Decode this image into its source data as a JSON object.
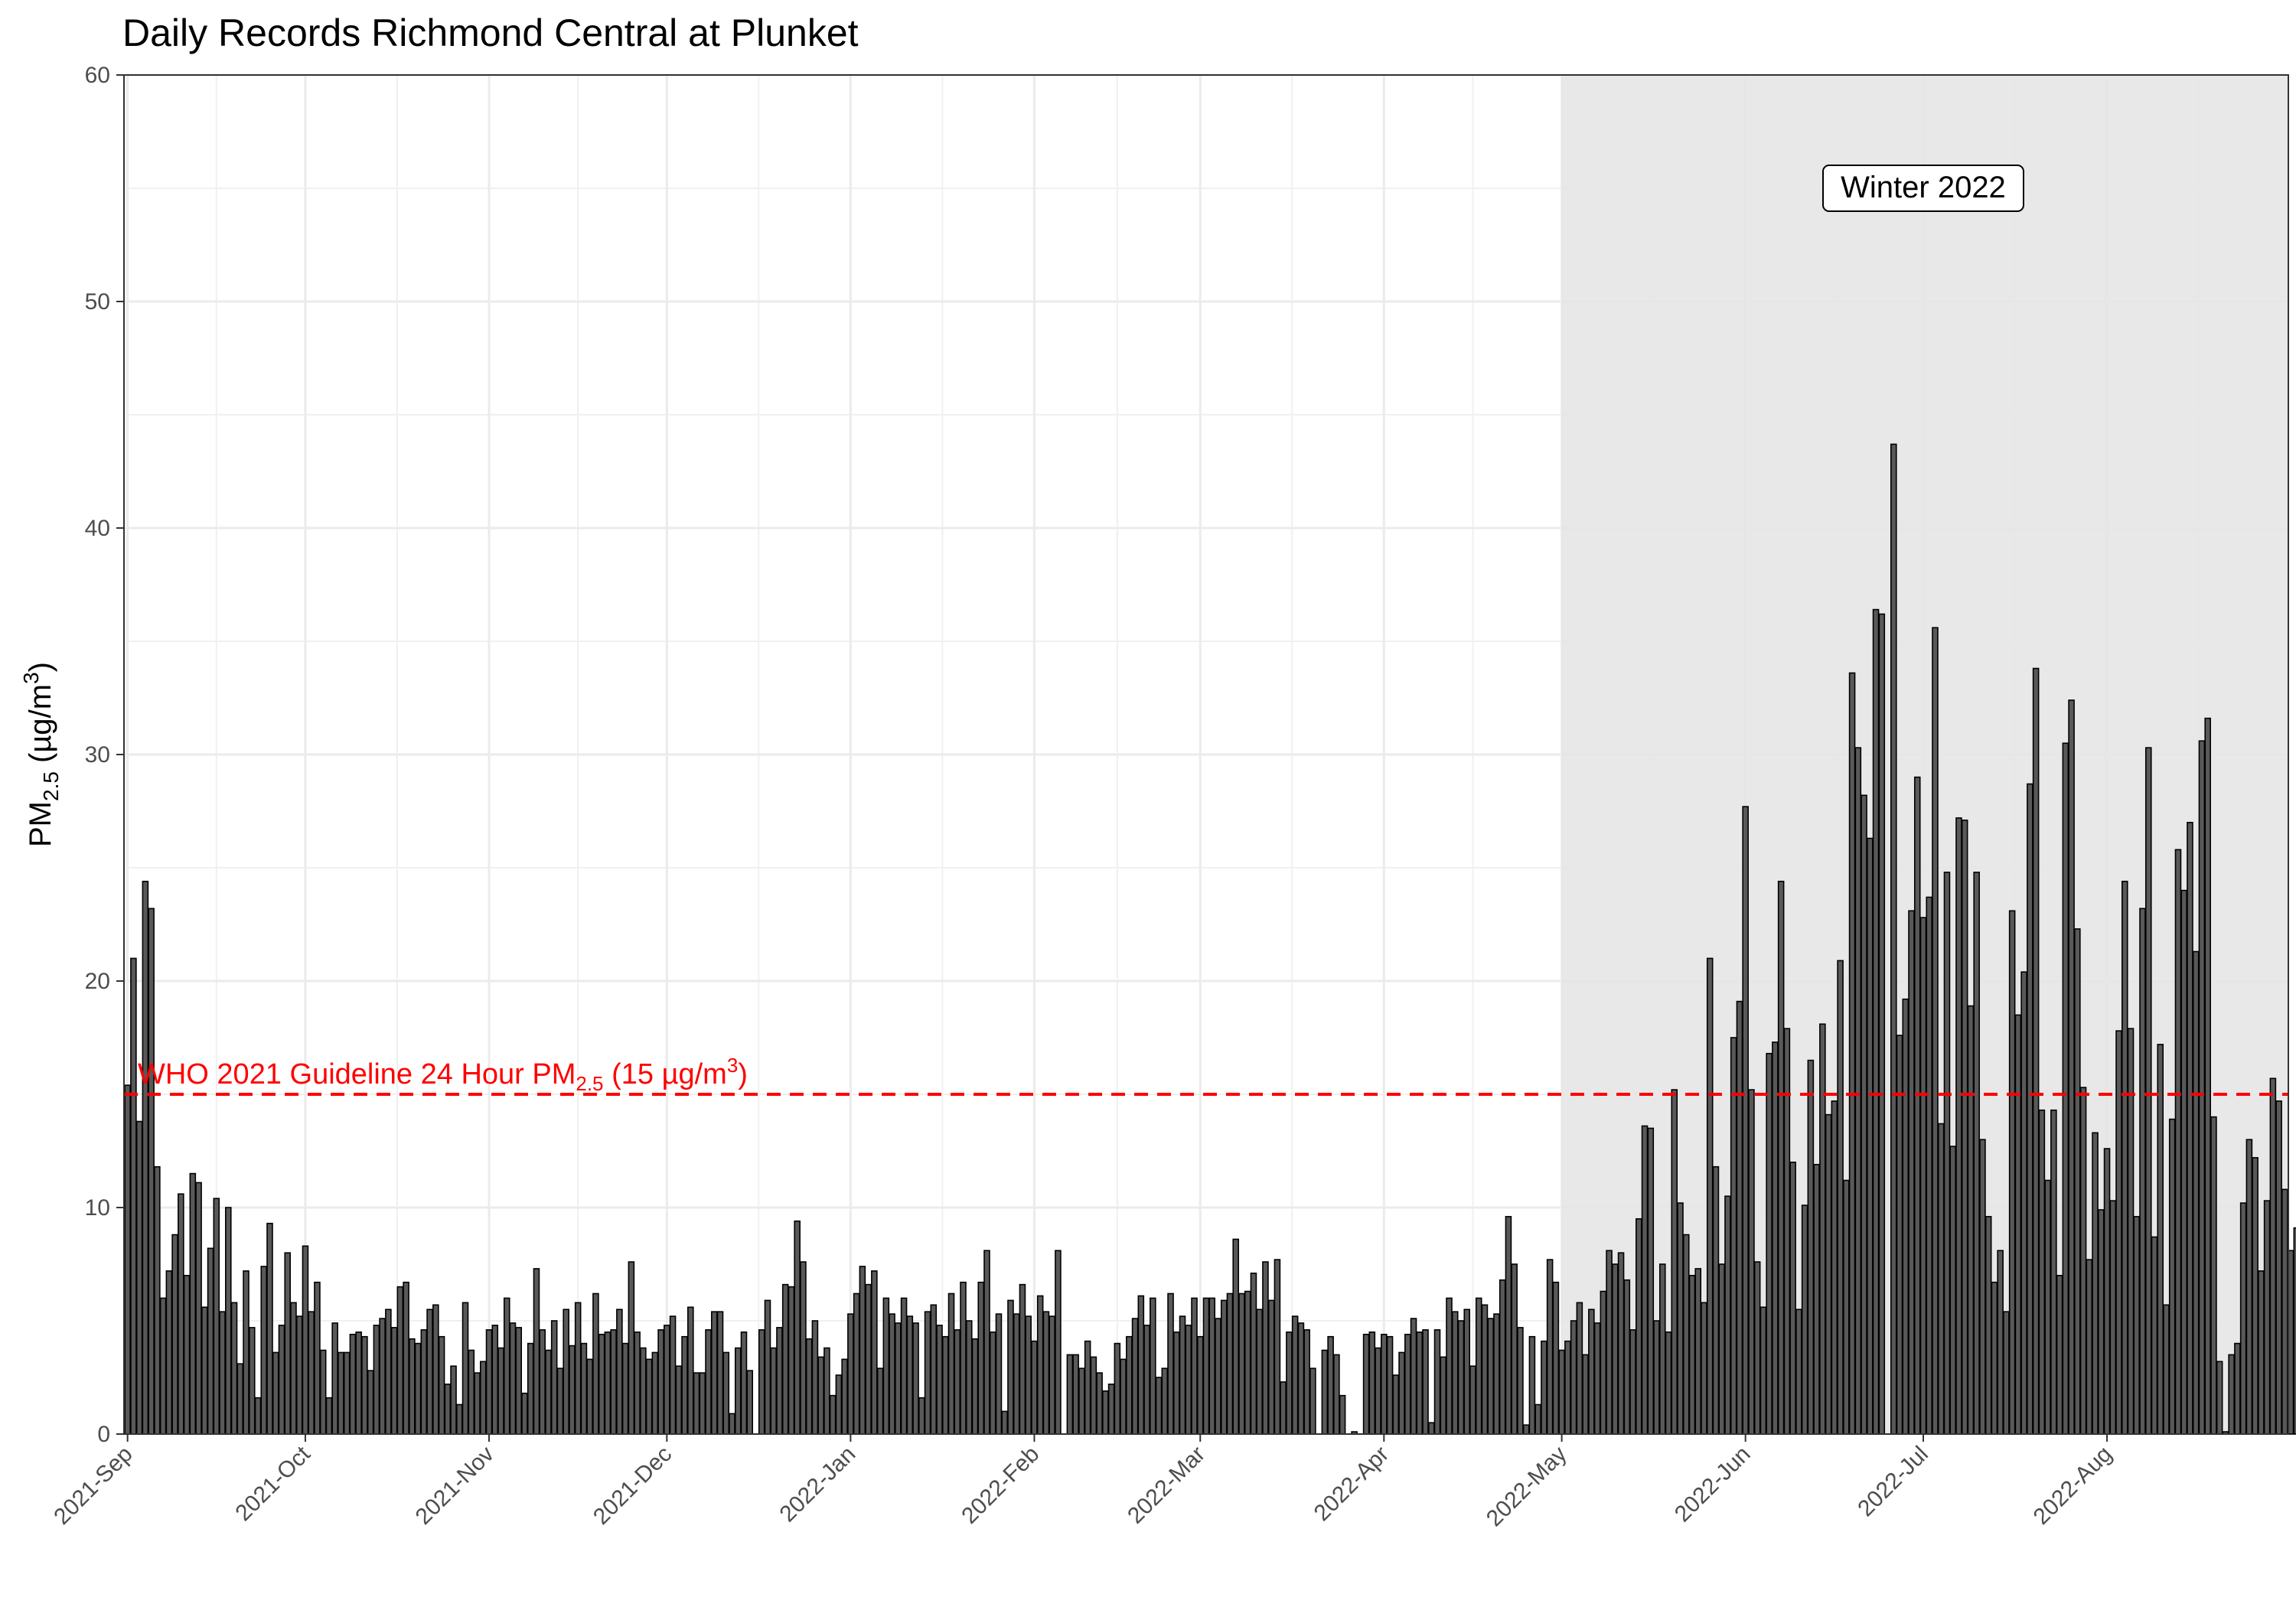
{
  "chart_data": {
    "type": "bar",
    "title": "Daily Records Richmond Central at Plunket",
    "xlabel": "",
    "ylabel": {
      "base": "PM",
      "sub": "2.5",
      "rest": " (µg/m",
      "sup": "3",
      "end": ")"
    },
    "ylim": [
      0,
      60
    ],
    "yticks": [
      "0",
      "10",
      "20",
      "30",
      "40",
      "50",
      "60"
    ],
    "grid": true,
    "x_start": "2021-09-01",
    "x_end": "2022-08-31",
    "xticks": [
      "2021-Sep",
      "2021-Oct",
      "2021-Nov",
      "2021-Dec",
      "2022-Jan",
      "2022-Feb",
      "2022-Mar",
      "2022-Apr",
      "2022-May",
      "2022-Jun",
      "2022-Jul",
      "2022-Aug"
    ],
    "bar_color": "#595959",
    "reference_line": {
      "value": 15,
      "color": "#ff0000",
      "label": {
        "a": "WHO 2021 Guideline 24 Hour PM",
        "sub": "2.5",
        "b": " (15 µg/m",
        "sup": "3",
        "c": ")"
      }
    },
    "shaded_region": {
      "start": "2022-05-01",
      "end": "2022-08-31",
      "label": "Winter 2022",
      "color": "#e5e5e5"
    },
    "values": [
      15.4,
      21.0,
      13.8,
      24.4,
      23.2,
      11.8,
      6.0,
      7.2,
      8.8,
      10.6,
      7.0,
      11.5,
      11.1,
      5.6,
      8.2,
      10.4,
      5.4,
      10.0,
      5.8,
      3.1,
      7.2,
      4.7,
      1.6,
      7.4,
      9.3,
      3.6,
      4.8,
      8.0,
      5.8,
      5.2,
      8.3,
      5.4,
      6.7,
      3.7,
      1.6,
      4.9,
      3.6,
      3.6,
      4.4,
      4.5,
      4.3,
      2.8,
      4.8,
      5.1,
      5.5,
      4.7,
      6.5,
      6.7,
      4.2,
      4.0,
      4.6,
      5.5,
      5.7,
      4.3,
      2.2,
      3.0,
      1.3,
      5.8,
      3.7,
      2.7,
      3.2,
      4.6,
      4.8,
      3.8,
      6.0,
      4.9,
      4.7,
      1.8,
      4.0,
      7.3,
      4.6,
      3.7,
      5.0,
      2.9,
      5.5,
      3.9,
      5.8,
      4.0,
      3.3,
      6.2,
      4.4,
      4.5,
      4.6,
      5.5,
      4.0,
      7.6,
      4.5,
      3.8,
      3.3,
      3.6,
      4.6,
      4.8,
      5.2,
      3.0,
      4.3,
      5.6,
      2.7,
      2.7,
      4.6,
      5.4,
      5.4,
      3.6,
      0.9,
      3.8,
      4.5,
      2.8,
      null,
      4.6,
      5.9,
      3.8,
      4.7,
      6.6,
      6.5,
      9.4,
      7.6,
      4.2,
      5.0,
      3.4,
      3.8,
      1.7,
      2.6,
      3.3,
      5.3,
      6.2,
      7.4,
      6.6,
      7.2,
      2.9,
      6.0,
      5.3,
      4.9,
      6.0,
      5.2,
      4.9,
      1.6,
      5.4,
      5.7,
      4.8,
      4.3,
      6.2,
      4.6,
      6.7,
      5.0,
      4.2,
      6.7,
      8.1,
      4.5,
      5.3,
      1.0,
      5.9,
      5.3,
      6.6,
      5.2,
      4.1,
      6.1,
      5.4,
      5.2,
      8.1,
      null,
      3.5,
      3.5,
      2.9,
      4.1,
      3.4,
      2.7,
      1.9,
      2.2,
      4.0,
      3.3,
      4.3,
      5.1,
      6.1,
      4.8,
      6.0,
      2.5,
      2.9,
      6.2,
      4.5,
      5.2,
      4.8,
      6.0,
      4.3,
      6.0,
      6.0,
      5.1,
      5.9,
      6.2,
      8.6,
      6.2,
      6.3,
      7.1,
      5.5,
      7.6,
      5.9,
      7.7,
      2.3,
      4.5,
      5.2,
      4.9,
      4.6,
      2.9,
      null,
      3.7,
      4.3,
      3.5,
      1.7,
      null,
      0.1,
      null,
      4.4,
      4.5,
      3.8,
      4.4,
      4.3,
      2.6,
      3.6,
      4.4,
      5.1,
      4.5,
      4.6,
      0.5,
      4.6,
      3.4,
      6.0,
      5.4,
      5.0,
      5.5,
      3.0,
      6.0,
      5.7,
      5.1,
      5.3,
      6.8,
      9.6,
      7.5,
      4.7,
      0.4,
      4.3,
      1.3,
      4.1,
      7.7,
      6.7,
      3.7,
      4.1,
      5.0,
      5.8,
      3.5,
      5.5,
      4.9,
      6.3,
      8.1,
      7.5,
      8.0,
      6.8,
      4.6,
      9.5,
      13.6,
      13.5,
      5.0,
      7.5,
      4.5,
      15.2,
      10.2,
      8.8,
      7.0,
      7.3,
      5.8,
      21.0,
      11.8,
      7.5,
      10.5,
      17.5,
      19.1,
      27.7,
      15.2,
      7.6,
      5.6,
      16.8,
      17.3,
      24.4,
      17.9,
      12.0,
      5.5,
      10.1,
      16.5,
      11.9,
      18.1,
      14.1,
      14.7,
      20.9,
      11.2,
      33.6,
      30.3,
      28.2,
      26.3,
      36.4,
      36.2,
      null,
      43.7,
      17.6,
      19.2,
      23.1,
      29.0,
      22.8,
      23.7,
      35.6,
      13.7,
      24.8,
      12.7,
      27.2,
      27.1,
      18.9,
      24.8,
      13.0,
      9.6,
      6.7,
      8.1,
      5.4,
      23.1,
      18.5,
      20.4,
      28.7,
      33.8,
      14.3,
      11.2,
      14.3,
      7.0,
      30.5,
      32.4,
      22.3,
      15.3,
      7.7,
      13.3,
      9.9,
      12.6,
      10.3,
      17.8,
      24.4,
      17.9,
      9.6,
      23.2,
      30.3,
      8.7,
      17.2,
      5.7,
      13.9,
      25.8,
      24.0,
      27.0,
      21.3,
      30.6,
      31.6,
      14.0,
      3.2,
      0.1,
      3.5,
      4.0,
      10.2,
      13.0,
      12.2,
      7.2,
      10.3,
      15.7,
      14.7,
      10.8,
      8.1,
      9.1
    ]
  }
}
